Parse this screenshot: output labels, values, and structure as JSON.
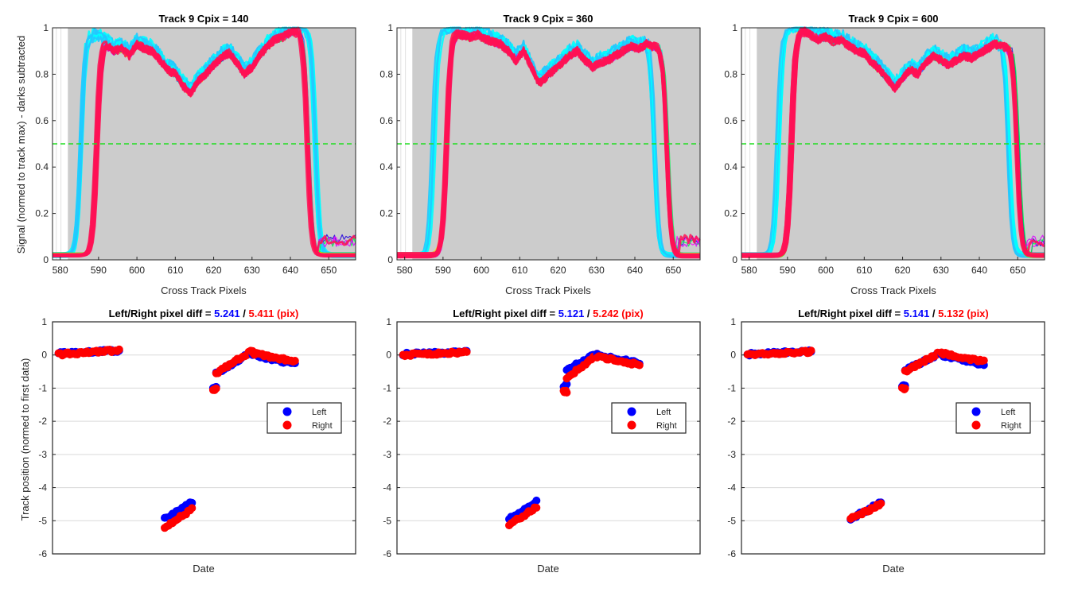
{
  "colors": {
    "plot_bg": "#cccccc",
    "threshold": "#22dd22",
    "left": "#0000ff",
    "right": "#ff0000",
    "grid": "#d9d9d9",
    "axis": "#262626",
    "curve_palette": [
      "#00ffff",
      "#22c8ff",
      "#3355ff",
      "#2200dd",
      "#00ff44",
      "#00ffaa",
      "#55ff00",
      "#ffdd00",
      "#ff00ff",
      "#dd00ff",
      "#ff0088"
    ]
  },
  "chart_data": [
    {
      "type": "line",
      "title": "Track 9 Cpix = 140",
      "xlabel": "Cross Track Pixels",
      "ylabel": "Signal (normed to track max) - darks subtracted",
      "xlim": [
        578,
        657
      ],
      "ylim": [
        0,
        1
      ],
      "xticks": [
        "580",
        "590",
        "600",
        "610",
        "620",
        "630",
        "640",
        "650"
      ],
      "yticks": [
        "0",
        "0.2",
        "0.4",
        "0.6",
        "0.8",
        "1"
      ],
      "threshold_y": 0.5,
      "shaded_xrange": [
        582,
        657
      ],
      "profile": {
        "x": [
          590,
          592,
          594,
          596,
          598,
          600,
          602,
          604,
          606,
          608,
          610,
          612,
          614,
          616,
          618,
          620,
          622,
          624,
          626,
          628,
          630,
          632,
          634,
          636,
          638,
          640,
          642
        ],
        "y": [
          0.95,
          0.93,
          0.9,
          0.91,
          0.88,
          0.93,
          0.91,
          0.9,
          0.86,
          0.82,
          0.8,
          0.75,
          0.72,
          0.77,
          0.8,
          0.84,
          0.87,
          0.89,
          0.85,
          0.8,
          0.83,
          0.88,
          0.92,
          0.95,
          0.96,
          0.98,
          0.99
        ]
      },
      "early_edges": [
        585.5,
        646.5
      ],
      "late_edges": [
        589.5,
        644.5
      ]
    },
    {
      "type": "line",
      "title": "Track 9 Cpix = 360",
      "xlabel": "Cross Track Pixels",
      "xlim": [
        578,
        657
      ],
      "ylim": [
        0,
        1
      ],
      "xticks": [
        "580",
        "590",
        "600",
        "610",
        "620",
        "630",
        "640",
        "650"
      ],
      "yticks": [
        "0",
        "0.2",
        "0.4",
        "0.6",
        "0.8",
        "1"
      ],
      "threshold_y": 0.5,
      "shaded_xrange": [
        582,
        657
      ],
      "profile": {
        "x": [
          593,
          595,
          597,
          599,
          601,
          603,
          605,
          607,
          609,
          611,
          613,
          615,
          617,
          619,
          621,
          623,
          625,
          627,
          629,
          631,
          633,
          635,
          637,
          639,
          641,
          643,
          645
        ],
        "y": [
          0.98,
          0.97,
          0.96,
          0.97,
          0.95,
          0.94,
          0.93,
          0.9,
          0.86,
          0.9,
          0.83,
          0.76,
          0.79,
          0.82,
          0.85,
          0.88,
          0.9,
          0.86,
          0.83,
          0.85,
          0.86,
          0.88,
          0.9,
          0.92,
          0.91,
          0.93,
          0.92
        ]
      },
      "early_edges": [
        587.5,
        645
      ],
      "late_edges": [
        591,
        648.5
      ]
    },
    {
      "type": "line",
      "title": "Track 9 Cpix = 600",
      "xlabel": "Cross Track Pixels",
      "xlim": [
        578,
        657
      ],
      "ylim": [
        0,
        1
      ],
      "xticks": [
        "580",
        "590",
        "600",
        "610",
        "620",
        "630",
        "640",
        "650"
      ],
      "yticks": [
        "0",
        "0.2",
        "0.4",
        "0.6",
        "0.8",
        "1"
      ],
      "threshold_y": 0.5,
      "shaded_xrange": [
        582,
        657
      ],
      "profile": {
        "x": [
          594,
          596,
          598,
          600,
          602,
          604,
          606,
          608,
          610,
          612,
          614,
          616,
          618,
          620,
          622,
          624,
          626,
          628,
          630,
          632,
          634,
          636,
          638,
          640,
          642,
          644,
          646
        ],
        "y": [
          0.99,
          0.97,
          0.95,
          0.96,
          0.94,
          0.95,
          0.92,
          0.9,
          0.89,
          0.85,
          0.82,
          0.78,
          0.74,
          0.78,
          0.82,
          0.8,
          0.85,
          0.88,
          0.86,
          0.84,
          0.86,
          0.88,
          0.87,
          0.89,
          0.91,
          0.93,
          0.92
        ]
      },
      "early_edges": [
        587.5,
        647.5
      ],
      "late_edges": [
        591,
        650
      ]
    },
    {
      "type": "scatter",
      "title_prefix": "Left/Right pixel diff = ",
      "title_left": "5.241",
      "title_sep": " / ",
      "title_right": "5.411 (pix)",
      "xlabel": "Date",
      "ylabel": "Track position (normed to first data)",
      "ylim": [
        -6,
        1
      ],
      "yticks": [
        "-6",
        "-5",
        "-4",
        "-3",
        "-2",
        "-1",
        "0",
        "1"
      ],
      "legend": [
        "Left",
        "Right"
      ],
      "legend_position": "east",
      "groups": [
        {
          "x": [
            0.02,
            0.22
          ],
          "left": [
            0.06,
            0.13
          ],
          "right": [
            0.02,
            0.14
          ]
        },
        {
          "x": [
            0.37,
            0.46
          ],
          "left": [
            -4.95,
            -4.45
          ],
          "right": [
            -5.2,
            -4.65
          ]
        },
        {
          "x": [
            0.53,
            0.54
          ],
          "left": [
            -1.0,
            -1.0
          ],
          "right": [
            -1.05,
            -1.05
          ]
        },
        {
          "x": [
            0.54,
            0.66
          ],
          "left": [
            -0.55,
            0.1
          ],
          "right": [
            -0.55,
            0.15
          ]
        },
        {
          "x": [
            0.66,
            0.8
          ],
          "left": [
            0.0,
            -0.28
          ],
          "right": [
            0.05,
            -0.2
          ]
        }
      ]
    },
    {
      "type": "scatter",
      "title_prefix": "Left/Right pixel diff = ",
      "title_left": "5.121",
      "title_sep": " / ",
      "title_right": "5.242 (pix)",
      "xlabel": "Date",
      "ylim": [
        -6,
        1
      ],
      "yticks": [
        "-6",
        "-5",
        "-4",
        "-3",
        "-2",
        "-1",
        "0",
        "1"
      ],
      "legend": [
        "Left",
        "Right"
      ],
      "legend_position": "east",
      "groups": [
        {
          "x": [
            0.02,
            0.23
          ],
          "left": [
            0.03,
            0.09
          ],
          "right": [
            0.0,
            0.08
          ]
        },
        {
          "x": [
            0.37,
            0.46
          ],
          "left": [
            -4.95,
            -4.4
          ],
          "right": [
            -5.12,
            -4.6
          ]
        },
        {
          "x": [
            0.55,
            0.56
          ],
          "left": [
            -0.92,
            -0.92
          ],
          "right": [
            -1.1,
            -1.1
          ]
        },
        {
          "x": [
            0.56,
            0.66
          ],
          "left": [
            -0.45,
            0.05
          ],
          "right": [
            -0.7,
            0.0
          ]
        },
        {
          "x": [
            0.66,
            0.8
          ],
          "left": [
            0.0,
            -0.25
          ],
          "right": [
            -0.05,
            -0.3
          ]
        }
      ]
    },
    {
      "type": "scatter",
      "title_prefix": "Left/Right pixel diff = ",
      "title_left": "5.141",
      "title_sep": " / ",
      "title_right": "5.132 (pix)",
      "xlabel": "Date",
      "ylim": [
        -6,
        1
      ],
      "yticks": [
        "-6",
        "-5",
        "-4",
        "-3",
        "-2",
        "-1",
        "0",
        "1"
      ],
      "legend": [
        "Left",
        "Right"
      ],
      "legend_position": "east",
      "groups": [
        {
          "x": [
            0.02,
            0.23
          ],
          "left": [
            0.02,
            0.12
          ],
          "right": [
            0.0,
            0.1
          ]
        },
        {
          "x": [
            0.36,
            0.46
          ],
          "left": [
            -4.95,
            -4.45
          ],
          "right": [
            -4.95,
            -4.5
          ]
        },
        {
          "x": [
            0.53,
            0.54
          ],
          "left": [
            -0.95,
            -0.95
          ],
          "right": [
            -1.0,
            -1.0
          ]
        },
        {
          "x": [
            0.54,
            0.66
          ],
          "left": [
            -0.45,
            0.05
          ],
          "right": [
            -0.5,
            0.1
          ]
        },
        {
          "x": [
            0.66,
            0.8
          ],
          "left": [
            0.0,
            -0.3
          ],
          "right": [
            0.05,
            -0.2
          ]
        }
      ]
    }
  ]
}
